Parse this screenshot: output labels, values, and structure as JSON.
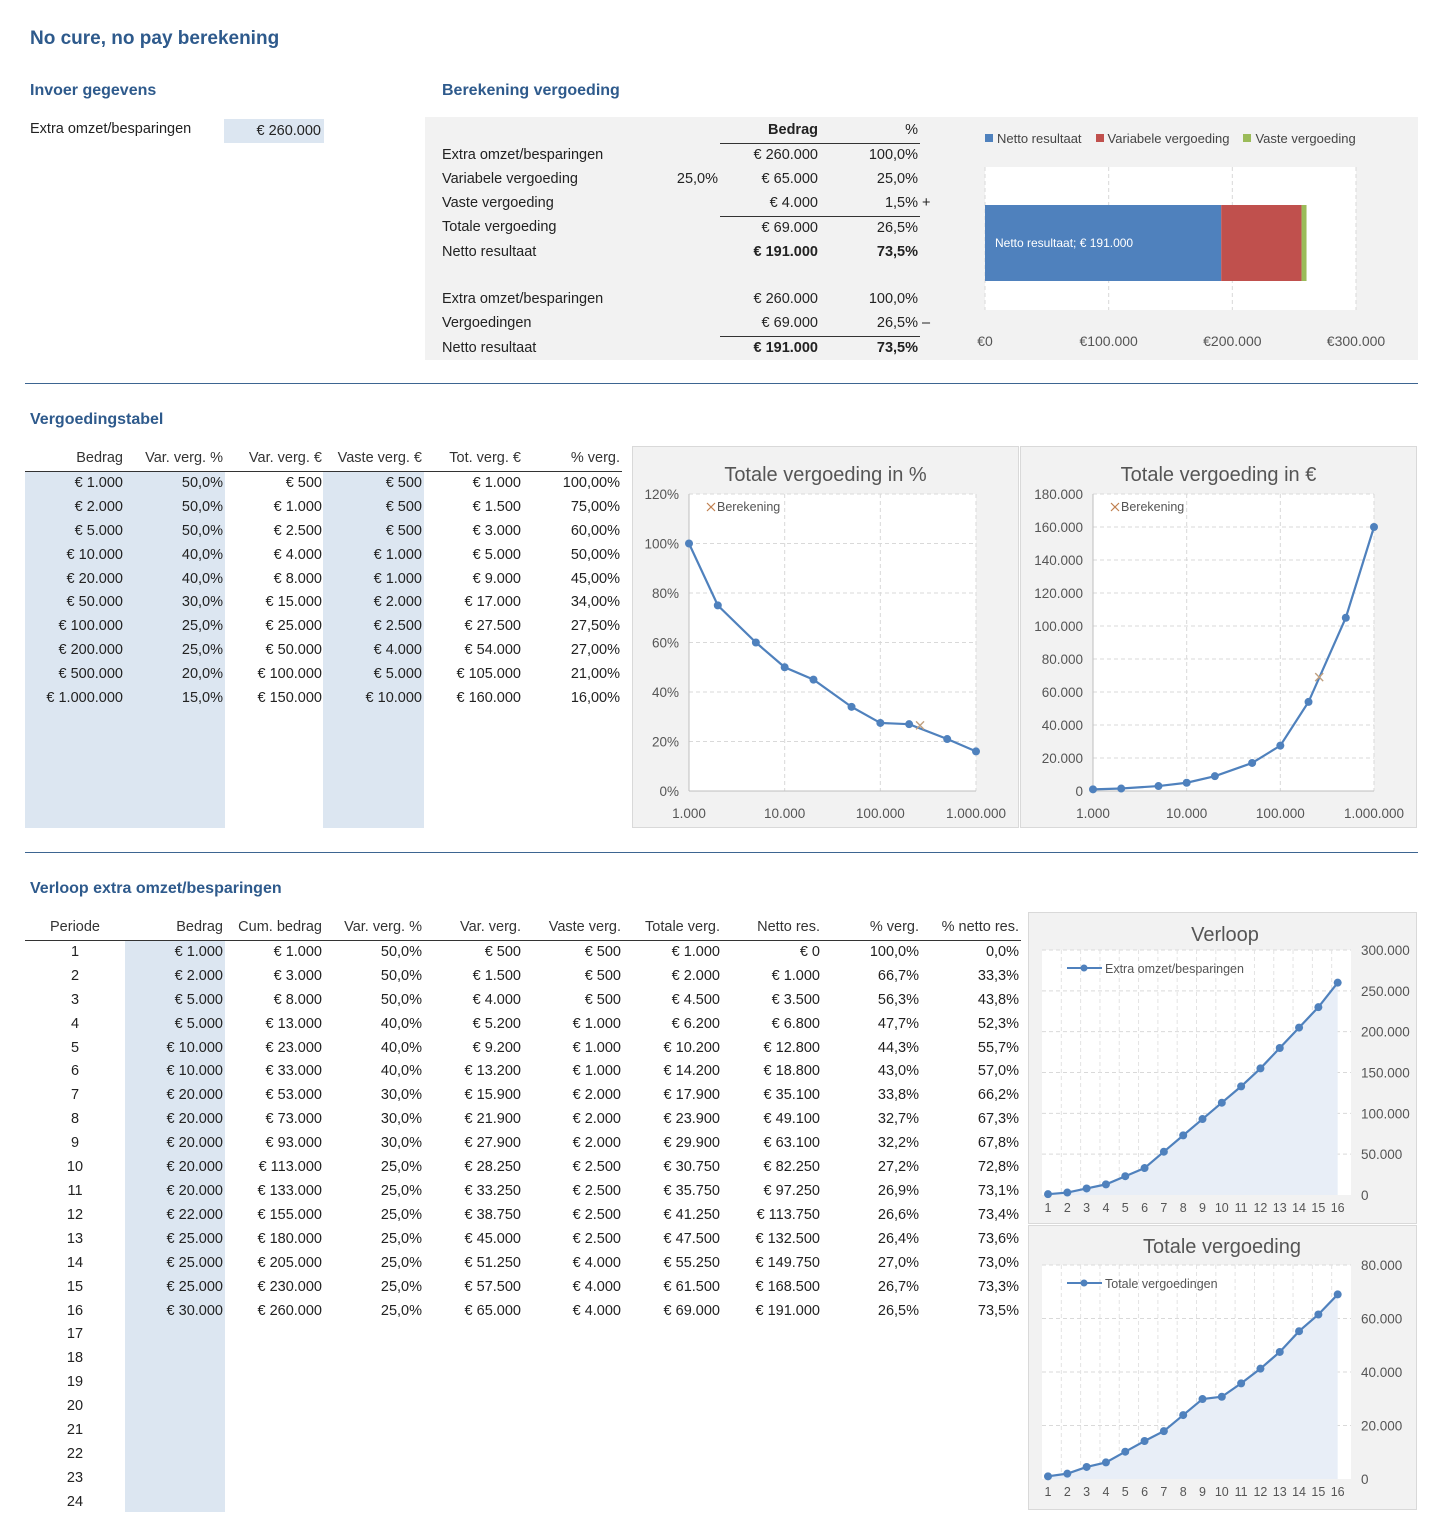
{
  "title": "No cure, no pay berekening",
  "input": {
    "heading": "Invoer gegevens",
    "label": "Extra omzet/besparingen",
    "value": "€ 260.000"
  },
  "calc": {
    "heading": "Berekening vergoeding",
    "col_amount": "Bedrag",
    "col_pct": "%",
    "rows1": [
      {
        "label": "Extra omzet/besparingen",
        "rate": "",
        "amount": "€ 260.000",
        "pct": "100,0%",
        "sign": "",
        "bold": false,
        "underline": false
      },
      {
        "label": "Variabele vergoeding",
        "rate": "25,0%",
        "amount": "€ 65.000",
        "pct": "25,0%",
        "sign": "",
        "bold": false,
        "underline": false
      },
      {
        "label": "Vaste vergoeding",
        "rate": "",
        "amount": "€ 4.000",
        "pct": "1,5%",
        "sign": "+",
        "bold": false,
        "underline": true
      },
      {
        "label": "Totale vergoeding",
        "rate": "",
        "amount": "€ 69.000",
        "pct": "26,5%",
        "sign": "",
        "bold": false,
        "underline": false
      },
      {
        "label": "Netto resultaat",
        "rate": "",
        "amount": "€ 191.000",
        "pct": "73,5%",
        "sign": "",
        "bold": true,
        "underline": false
      }
    ],
    "rows2": [
      {
        "label": "Extra omzet/besparingen",
        "amount": "€ 260.000",
        "pct": "100,0%",
        "sign": "",
        "bold": false,
        "underline": false
      },
      {
        "label": "Vergoedingen",
        "amount": "€ 69.000",
        "pct": "26,5%",
        "sign": "–",
        "bold": false,
        "underline": true
      },
      {
        "label": "Netto resultaat",
        "amount": "€ 191.000",
        "pct": "73,5%",
        "sign": "",
        "bold": true,
        "underline": false
      }
    ]
  },
  "bar_chart": {
    "legend": [
      {
        "name": "Netto resultaat",
        "color": "#4f81bd"
      },
      {
        "name": "Variabele vergoeding",
        "color": "#c0504d"
      },
      {
        "name": "Vaste vergoeding",
        "color": "#9bbb59"
      }
    ],
    "data_label": "Netto resultaat; € 191.000",
    "ticks": [
      "€0",
      "€100.000",
      "€200.000",
      "€300.000"
    ]
  },
  "table": {
    "heading": "Vergoedingstabel",
    "headers": [
      "Bedrag",
      "Var. verg. %",
      "Var. verg. €",
      "Vaste verg. €",
      "Tot. verg. €",
      "% verg."
    ],
    "rows": [
      [
        "€ 1.000",
        "50,0%",
        "€ 500",
        "€ 500",
        "€ 1.000",
        "100,00%"
      ],
      [
        "€ 2.000",
        "50,0%",
        "€ 1.000",
        "€ 500",
        "€ 1.500",
        "75,00%"
      ],
      [
        "€ 5.000",
        "50,0%",
        "€ 2.500",
        "€ 500",
        "€ 3.000",
        "60,00%"
      ],
      [
        "€ 10.000",
        "40,0%",
        "€ 4.000",
        "€ 1.000",
        "€ 5.000",
        "50,00%"
      ],
      [
        "€ 20.000",
        "40,0%",
        "€ 8.000",
        "€ 1.000",
        "€ 9.000",
        "45,00%"
      ],
      [
        "€ 50.000",
        "30,0%",
        "€ 15.000",
        "€ 2.000",
        "€ 17.000",
        "34,00%"
      ],
      [
        "€ 100.000",
        "25,0%",
        "€ 25.000",
        "€ 2.500",
        "€ 27.500",
        "27,50%"
      ],
      [
        "€ 200.000",
        "25,0%",
        "€ 50.000",
        "€ 4.000",
        "€ 54.000",
        "27,00%"
      ],
      [
        "€ 500.000",
        "20,0%",
        "€ 100.000",
        "€ 5.000",
        "€ 105.000",
        "21,00%"
      ],
      [
        "€ 1.000.000",
        "15,0%",
        "€ 150.000",
        "€ 10.000",
        "€ 160.000",
        "16,00%"
      ]
    ]
  },
  "verloop": {
    "heading": "Verloop extra omzet/besparingen",
    "headers": [
      "Periode",
      "Bedrag",
      "Cum. bedrag",
      "Var. verg. %",
      "Var. verg.",
      "Vaste verg.",
      "Totale verg.",
      "Netto res.",
      "% verg.",
      "% netto res."
    ],
    "rows": [
      [
        "1",
        "€ 1.000",
        "€ 1.000",
        "50,0%",
        "€ 500",
        "€ 500",
        "€ 1.000",
        "€ 0",
        "100,0%",
        "0,0%"
      ],
      [
        "2",
        "€ 2.000",
        "€ 3.000",
        "50,0%",
        "€ 1.500",
        "€ 500",
        "€ 2.000",
        "€ 1.000",
        "66,7%",
        "33,3%"
      ],
      [
        "3",
        "€ 5.000",
        "€ 8.000",
        "50,0%",
        "€ 4.000",
        "€ 500",
        "€ 4.500",
        "€ 3.500",
        "56,3%",
        "43,8%"
      ],
      [
        "4",
        "€ 5.000",
        "€ 13.000",
        "40,0%",
        "€ 5.200",
        "€ 1.000",
        "€ 6.200",
        "€ 6.800",
        "47,7%",
        "52,3%"
      ],
      [
        "5",
        "€ 10.000",
        "€ 23.000",
        "40,0%",
        "€ 9.200",
        "€ 1.000",
        "€ 10.200",
        "€ 12.800",
        "44,3%",
        "55,7%"
      ],
      [
        "6",
        "€ 10.000",
        "€ 33.000",
        "40,0%",
        "€ 13.200",
        "€ 1.000",
        "€ 14.200",
        "€ 18.800",
        "43,0%",
        "57,0%"
      ],
      [
        "7",
        "€ 20.000",
        "€ 53.000",
        "30,0%",
        "€ 15.900",
        "€ 2.000",
        "€ 17.900",
        "€ 35.100",
        "33,8%",
        "66,2%"
      ],
      [
        "8",
        "€ 20.000",
        "€ 73.000",
        "30,0%",
        "€ 21.900",
        "€ 2.000",
        "€ 23.900",
        "€ 49.100",
        "32,7%",
        "67,3%"
      ],
      [
        "9",
        "€ 20.000",
        "€ 93.000",
        "30,0%",
        "€ 27.900",
        "€ 2.000",
        "€ 29.900",
        "€ 63.100",
        "32,2%",
        "67,8%"
      ],
      [
        "10",
        "€ 20.000",
        "€ 113.000",
        "25,0%",
        "€ 28.250",
        "€ 2.500",
        "€ 30.750",
        "€ 82.250",
        "27,2%",
        "72,8%"
      ],
      [
        "11",
        "€ 20.000",
        "€ 133.000",
        "25,0%",
        "€ 33.250",
        "€ 2.500",
        "€ 35.750",
        "€ 97.250",
        "26,9%",
        "73,1%"
      ],
      [
        "12",
        "€ 22.000",
        "€ 155.000",
        "25,0%",
        "€ 38.750",
        "€ 2.500",
        "€ 41.250",
        "€ 113.750",
        "26,6%",
        "73,4%"
      ],
      [
        "13",
        "€ 25.000",
        "€ 180.000",
        "25,0%",
        "€ 45.000",
        "€ 2.500",
        "€ 47.500",
        "€ 132.500",
        "26,4%",
        "73,6%"
      ],
      [
        "14",
        "€ 25.000",
        "€ 205.000",
        "25,0%",
        "€ 51.250",
        "€ 4.000",
        "€ 55.250",
        "€ 149.750",
        "27,0%",
        "73,0%"
      ],
      [
        "15",
        "€ 25.000",
        "€ 230.000",
        "25,0%",
        "€ 57.500",
        "€ 4.000",
        "€ 61.500",
        "€ 168.500",
        "26,7%",
        "73,3%"
      ],
      [
        "16",
        "€ 30.000",
        "€ 260.000",
        "25,0%",
        "€ 65.000",
        "€ 4.000",
        "€ 69.000",
        "€ 191.000",
        "26,5%",
        "73,5%"
      ],
      [
        "17",
        "",
        "",
        "",
        "",
        "",
        "",
        "",
        "",
        ""
      ],
      [
        "18",
        "",
        "",
        "",
        "",
        "",
        "",
        "",
        "",
        ""
      ],
      [
        "19",
        "",
        "",
        "",
        "",
        "",
        "",
        "",
        "",
        ""
      ],
      [
        "20",
        "",
        "",
        "",
        "",
        "",
        "",
        "",
        "",
        ""
      ],
      [
        "21",
        "",
        "",
        "",
        "",
        "",
        "",
        "",
        "",
        ""
      ],
      [
        "22",
        "",
        "",
        "",
        "",
        "",
        "",
        "",
        "",
        ""
      ],
      [
        "23",
        "",
        "",
        "",
        "",
        "",
        "",
        "",
        "",
        ""
      ],
      [
        "24",
        "",
        "",
        "",
        "",
        "",
        "",
        "",
        "",
        ""
      ]
    ]
  },
  "chart_data": [
    {
      "type": "bar",
      "orientation": "horizontal-stacked",
      "categories": [
        ""
      ],
      "series": [
        {
          "name": "Netto resultaat",
          "values": [
            191000
          ]
        },
        {
          "name": "Variabele vergoeding",
          "values": [
            65000
          ]
        },
        {
          "name": "Vaste vergoeding",
          "values": [
            4000
          ]
        }
      ],
      "xlim": [
        0,
        300000
      ],
      "ticks": [
        "€0",
        "€100.000",
        "€200.000",
        "€300.000"
      ],
      "legend": "top"
    },
    {
      "type": "line",
      "title": "Totale vergoeding in %",
      "x_scale": "log",
      "x": [
        1000,
        2000,
        5000,
        10000,
        20000,
        50000,
        100000,
        200000,
        500000,
        1000000
      ],
      "series": [
        {
          "name": "",
          "values": [
            100,
            75,
            60,
            50,
            45,
            34,
            27.5,
            27,
            21,
            16
          ]
        },
        {
          "name": "Berekening",
          "points": [
            [
              260000,
              26.5
            ]
          ]
        }
      ],
      "ylim": [
        0,
        120
      ],
      "y_ticks": [
        "0%",
        "20%",
        "40%",
        "60%",
        "80%",
        "100%",
        "120%"
      ],
      "x_ticks": [
        "1.000",
        "10.000",
        "100.000",
        "1.000.000"
      ]
    },
    {
      "type": "line",
      "title": "Totale vergoeding in €",
      "x_scale": "log",
      "x": [
        1000,
        2000,
        5000,
        10000,
        20000,
        50000,
        100000,
        200000,
        500000,
        1000000
      ],
      "series": [
        {
          "name": "",
          "values": [
            1000,
            1500,
            3000,
            5000,
            9000,
            17000,
            27500,
            54000,
            105000,
            160000
          ]
        },
        {
          "name": "Berekening",
          "points": [
            [
              260000,
              69000
            ]
          ]
        }
      ],
      "ylim": [
        0,
        180000
      ],
      "y_ticks": [
        "0",
        "20.000",
        "40.000",
        "60.000",
        "80.000",
        "100.000",
        "120.000",
        "140.000",
        "160.000",
        "180.000"
      ],
      "x_ticks": [
        "1.000",
        "10.000",
        "100.000",
        "1.000.000"
      ]
    },
    {
      "type": "area",
      "title": "Verloop",
      "categories": [
        "1",
        "2",
        "3",
        "4",
        "5",
        "6",
        "7",
        "8",
        "9",
        "10",
        "11",
        "12",
        "13",
        "14",
        "15",
        "16"
      ],
      "series": [
        {
          "name": "Extra omzet/besparingen",
          "values": [
            1000,
            3000,
            8000,
            13000,
            23000,
            33000,
            53000,
            73000,
            93000,
            113000,
            133000,
            155000,
            180000,
            205000,
            230000,
            260000
          ]
        }
      ],
      "ylim": [
        0,
        300000
      ],
      "y_ticks": [
        "0",
        "50.000",
        "100.000",
        "150.000",
        "200.000",
        "250.000",
        "300.000"
      ]
    },
    {
      "type": "area",
      "title": "Totale vergoeding",
      "categories": [
        "1",
        "2",
        "3",
        "4",
        "5",
        "6",
        "7",
        "8",
        "9",
        "10",
        "11",
        "12",
        "13",
        "14",
        "15",
        "16"
      ],
      "series": [
        {
          "name": "Totale vergoedingen",
          "values": [
            1000,
            2000,
            4500,
            6200,
            10200,
            14200,
            17900,
            23900,
            29900,
            30750,
            35750,
            41250,
            47500,
            55250,
            61500,
            69000
          ]
        }
      ],
      "ylim": [
        0,
        80000
      ],
      "y_ticks": [
        "0",
        "20.000",
        "40.000",
        "60.000",
        "80.000"
      ]
    }
  ]
}
